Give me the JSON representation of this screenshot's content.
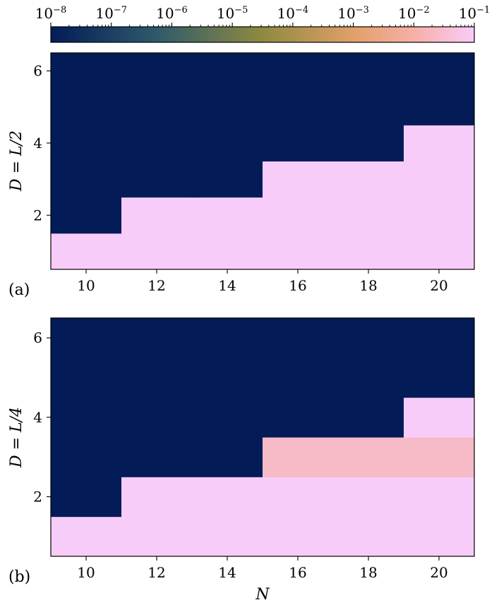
{
  "colorbar": {
    "tick_labels": [
      {
        "base": "10",
        "exp": "−8"
      },
      {
        "base": "10",
        "exp": "−7"
      },
      {
        "base": "10",
        "exp": "−6"
      },
      {
        "base": "10",
        "exp": "−5"
      },
      {
        "base": "10",
        "exp": "−4"
      },
      {
        "base": "10",
        "exp": "−3"
      },
      {
        "base": "10",
        "exp": "−2"
      },
      {
        "base": "10",
        "exp": "−1"
      }
    ],
    "range_log10": [
      -8,
      -1
    ],
    "scale": "log",
    "colors": {
      "low": "#031c58",
      "mid_low": "#3b6a6b",
      "mid": "#a08a3c",
      "mid_high": "#f2a48a",
      "high": "#f8ccf8"
    }
  },
  "panels": [
    {
      "label": "(a)",
      "ylabel": "D = L/2"
    },
    {
      "label": "(b)",
      "ylabel": "D = L/4"
    }
  ],
  "xlabel": "N",
  "chart_data": [
    {
      "type": "heatmap",
      "panel": "(a)",
      "x_centers": [
        10,
        12,
        14,
        16,
        18,
        20
      ],
      "y_centers": [
        1,
        2,
        3,
        4,
        5,
        6
      ],
      "xlim": [
        9,
        21
      ],
      "ylim": [
        0.5,
        6.5
      ],
      "xticks": [
        10,
        12,
        14,
        16,
        18,
        20
      ],
      "yticks": [
        2,
        4,
        6
      ],
      "xlabel": "",
      "ylabel": "D = L/2",
      "log10_values": [
        [
          -1,
          -1,
          -1,
          -1,
          -1,
          -1
        ],
        [
          -8,
          -1,
          -1,
          -1,
          -1,
          -1
        ],
        [
          -8,
          -8,
          -8,
          -1,
          -1,
          -1
        ],
        [
          -8,
          -8,
          -8,
          -8,
          -8,
          -1
        ],
        [
          -8,
          -8,
          -8,
          -8,
          -8,
          -8
        ],
        [
          -8,
          -8,
          -8,
          -8,
          -8,
          -8
        ]
      ]
    },
    {
      "type": "heatmap",
      "panel": "(b)",
      "x_centers": [
        10,
        12,
        14,
        16,
        18,
        20
      ],
      "y_centers": [
        1,
        2,
        3,
        4,
        5,
        6
      ],
      "xlim": [
        9,
        21
      ],
      "ylim": [
        0.5,
        6.5
      ],
      "xticks": [
        10,
        12,
        14,
        16,
        18,
        20
      ],
      "yticks": [
        2,
        4,
        6
      ],
      "xlabel": "N",
      "ylabel": "D = L/4",
      "log10_values": [
        [
          -1,
          -1,
          -1,
          -1,
          -1,
          -1
        ],
        [
          -8,
          -1,
          -1,
          -1,
          -1,
          -1
        ],
        [
          -8,
          -8,
          -8,
          -1.6,
          -1.6,
          -1.6
        ],
        [
          -8,
          -8,
          -8,
          -8,
          -8,
          -1
        ],
        [
          -8,
          -8,
          -8,
          -8,
          -8,
          -8
        ],
        [
          -8,
          -8,
          -8,
          -8,
          -8,
          -8
        ]
      ]
    }
  ]
}
